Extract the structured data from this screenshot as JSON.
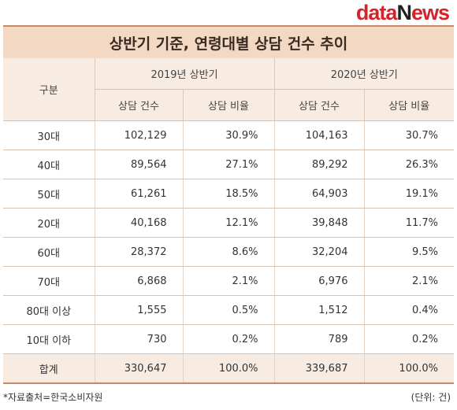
{
  "logo": {
    "part1": "data",
    "part2": "N",
    "part3": "ews"
  },
  "title": "상반기 기준, 연령대별 상담 건수 추이",
  "header": {
    "category": "구분",
    "groups": [
      "2019년 상반기",
      "2020년 상반기"
    ],
    "subcols": [
      "상담 건수",
      "상담 비율",
      "상담 건수",
      "상담 비율"
    ]
  },
  "rows": [
    {
      "label": "30대",
      "cells": [
        "102,129",
        "30.9%",
        "104,163",
        "30.7%"
      ]
    },
    {
      "label": "40대",
      "cells": [
        "89,564",
        "27.1%",
        "89,292",
        "26.3%"
      ]
    },
    {
      "label": "50대",
      "cells": [
        "61,261",
        "18.5%",
        "64,903",
        "19.1%"
      ]
    },
    {
      "label": "20대",
      "cells": [
        "40,168",
        "12.1%",
        "39,848",
        "11.7%"
      ]
    },
    {
      "label": "60대",
      "cells": [
        "28,372",
        "8.6%",
        "32,204",
        "9.5%"
      ]
    },
    {
      "label": "70대",
      "cells": [
        "6,868",
        "2.1%",
        "6,976",
        "2.1%"
      ]
    },
    {
      "label": "80대 이상",
      "cells": [
        "1,555",
        "0.5%",
        "1,512",
        "0.4%"
      ]
    },
    {
      "label": "10대 이하",
      "cells": [
        "730",
        "0.2%",
        "789",
        "0.2%"
      ]
    },
    {
      "label": "합계",
      "cells": [
        "330,647",
        "100.0%",
        "339,687",
        "100.0%"
      ]
    }
  ],
  "footer": {
    "source": "*자료출처=한국소비자원",
    "unit": "(단위: 건)"
  },
  "colors": {
    "title_bg": "#f3d8c4",
    "header_bg": "#f8ebe1",
    "accent_border": "#c58a63",
    "logo_red": "#d6232a"
  }
}
